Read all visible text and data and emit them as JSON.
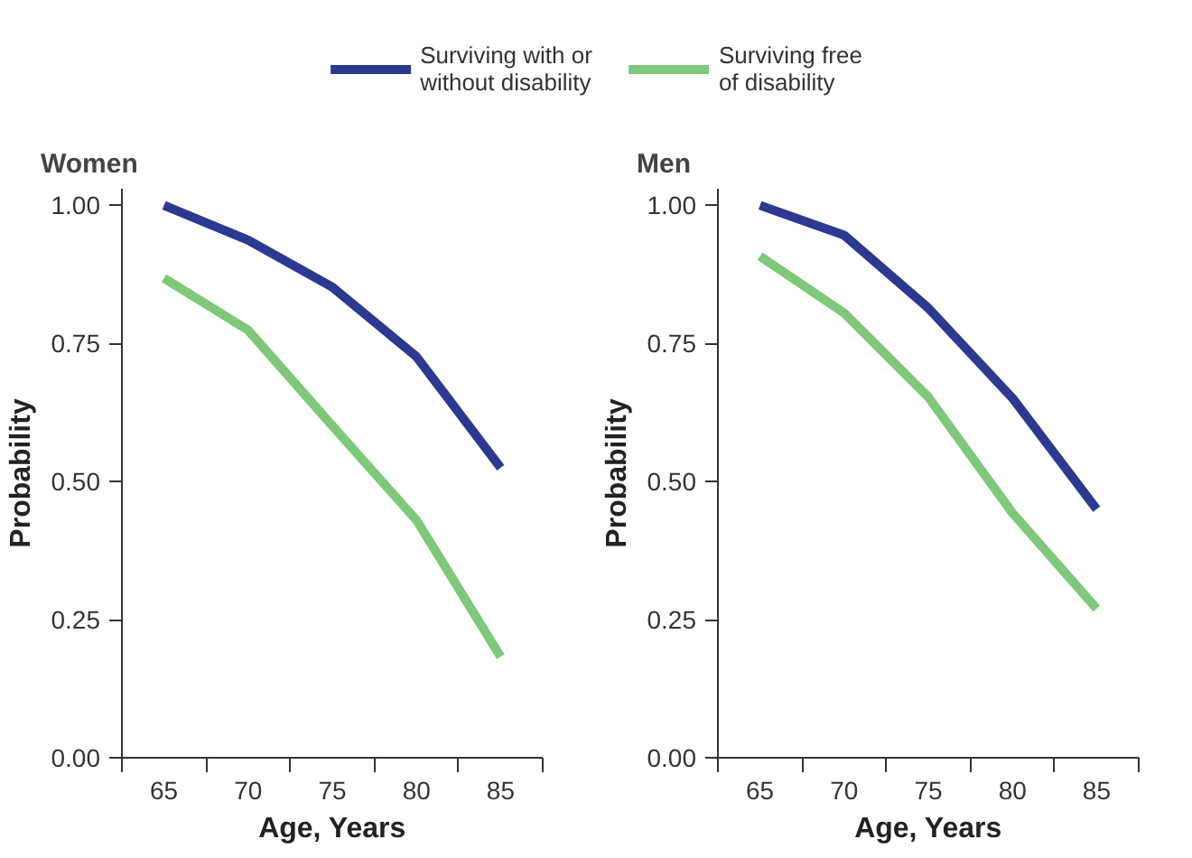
{
  "chart_data": [
    {
      "type": "line",
      "title": "Women",
      "xlabel": "Age, Years",
      "ylabel": "Probability",
      "legend": "top",
      "grid": false,
      "x": [
        65,
        70,
        75,
        80,
        85
      ],
      "xlim": [
        62.5,
        87.5
      ],
      "ylim": [
        0,
        1.03
      ],
      "xticks": [
        {
          "value": 62.5,
          "label": null
        },
        65,
        {
          "value": 67.5,
          "label": null
        },
        70,
        {
          "value": 72.5,
          "label": null
        },
        75,
        {
          "value": 77.5,
          "label": null
        },
        80,
        {
          "value": 82.5,
          "label": null
        },
        85,
        {
          "value": 87.5,
          "label": null
        }
      ],
      "yticks": [
        {
          "value": 0,
          "label": "0.00"
        },
        {
          "value": 0.25,
          "label": "0.25"
        },
        {
          "value": 0.5,
          "label": "0.50"
        },
        {
          "value": 0.75,
          "label": "0.75"
        },
        {
          "value": 1,
          "label": "1.00"
        }
      ],
      "series": [
        {
          "name": "Surviving with or without disability",
          "color": "#2b3990",
          "values": [
            1.0,
            0.937,
            0.852,
            0.726,
            0.525
          ]
        },
        {
          "name": "Surviving free of disability",
          "color": "#7ec87a",
          "values": [
            0.868,
            0.774,
            0.601,
            0.43,
            0.183
          ]
        }
      ]
    },
    {
      "type": "line",
      "title": "Men",
      "xlabel": "Age, Years",
      "ylabel": "Probability",
      "grid": false,
      "x": [
        65,
        70,
        75,
        80,
        85
      ],
      "xlim": [
        62.5,
        87.5
      ],
      "ylim": [
        0,
        1.03
      ],
      "xticks": [
        {
          "value": 62.5,
          "label": null
        },
        65,
        {
          "value": 67.5,
          "label": null
        },
        70,
        {
          "value": 72.5,
          "label": null
        },
        75,
        {
          "value": 77.5,
          "label": null
        },
        80,
        {
          "value": 82.5,
          "label": null
        },
        85,
        {
          "value": 87.5,
          "label": null
        }
      ],
      "yticks": [
        {
          "value": 0,
          "label": "0.00"
        },
        {
          "value": 0.25,
          "label": "0.25"
        },
        {
          "value": 0.5,
          "label": "0.50"
        },
        {
          "value": 0.75,
          "label": "0.75"
        },
        {
          "value": 1,
          "label": "1.00"
        }
      ],
      "series": [
        {
          "color": "#2b3990",
          "values": [
            1.0,
            0.946,
            0.814,
            0.651,
            0.45
          ]
        },
        {
          "color": "#7ec87a",
          "values": [
            0.908,
            0.805,
            0.653,
            0.443,
            0.27
          ]
        }
      ]
    }
  ]
}
